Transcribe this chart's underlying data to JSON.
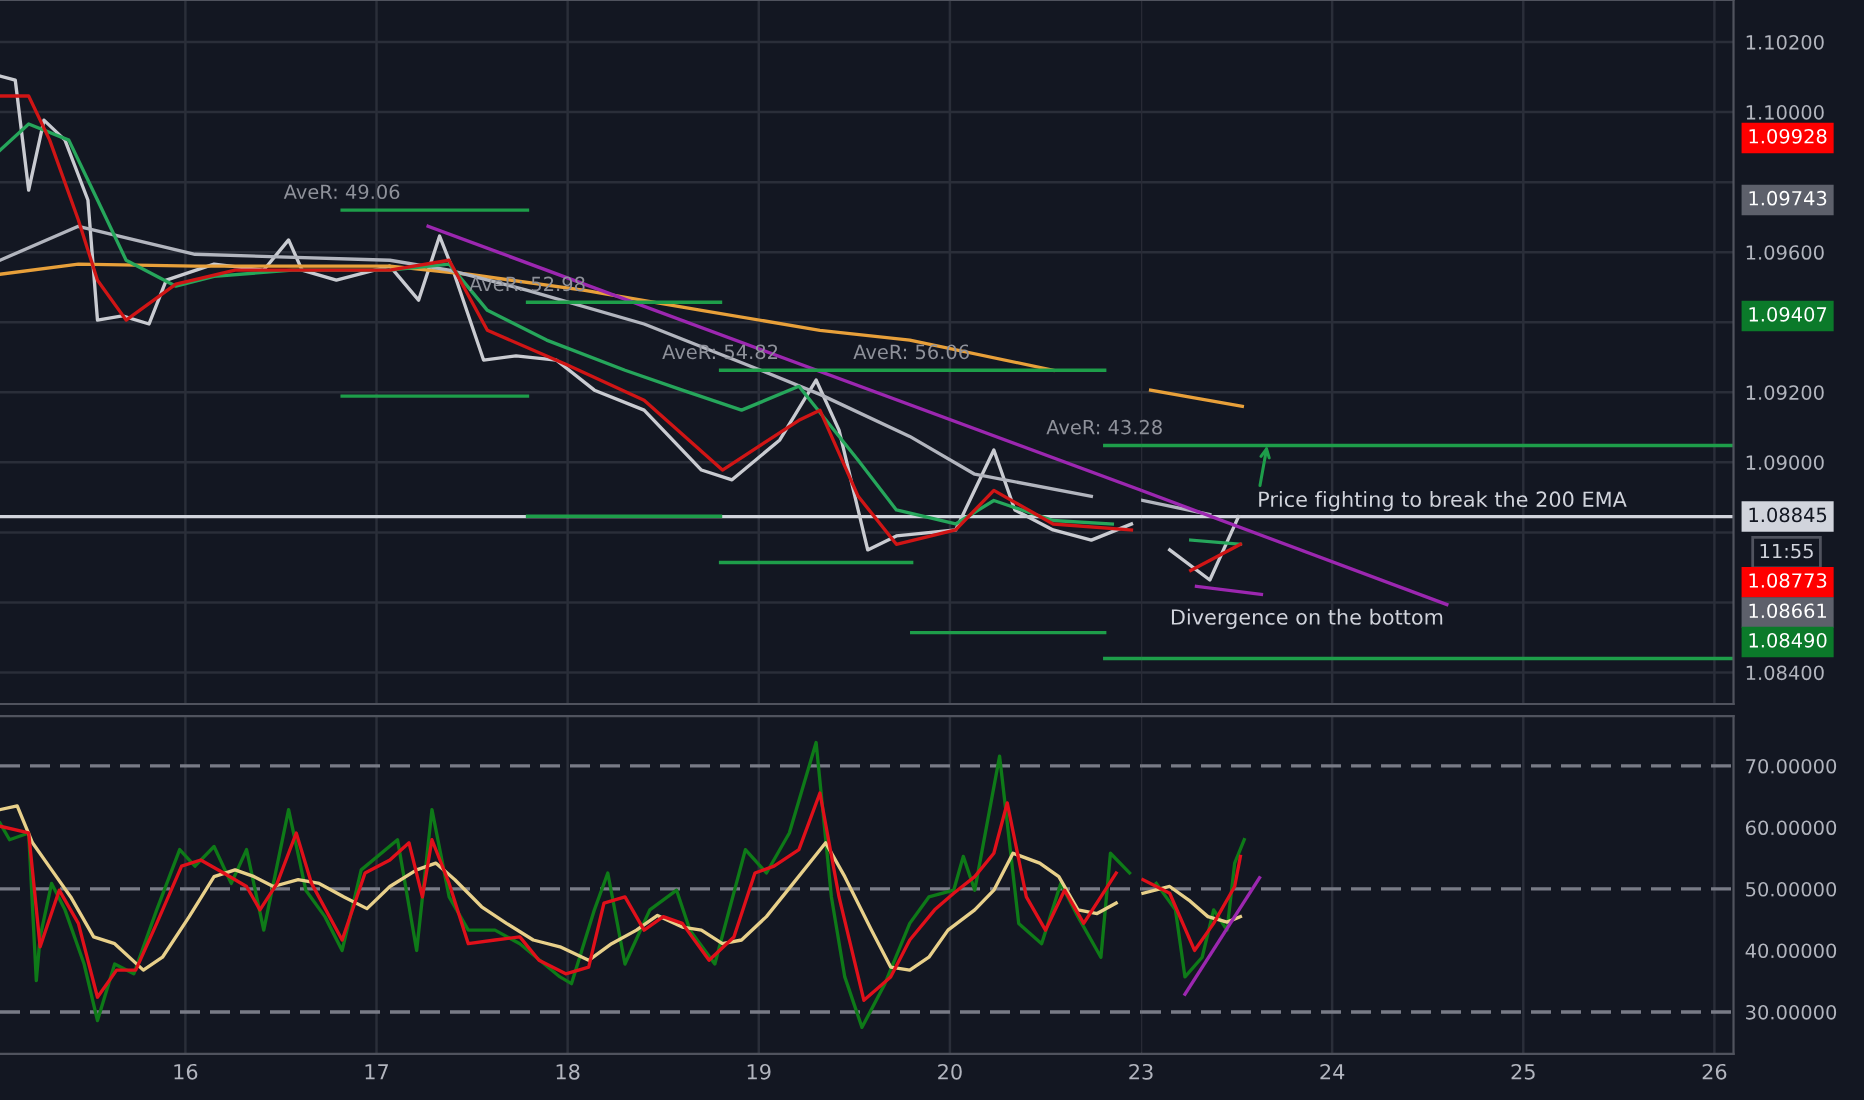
{
  "chart_data": [
    {
      "type": "line",
      "xlim": [
        15.03,
        21
      ],
      "ylim": [
        1.0831,
        1.1032
      ],
      "xticks": [
        {
          "value": 16,
          "label": null
        },
        {
          "value": 17,
          "label": null
        },
        {
          "value": 18,
          "label": null
        },
        {
          "value": 19,
          "label": null
        },
        {
          "value": 20,
          "label": null
        }
      ],
      "yticks": [
        1.084,
        1.086,
        1.088,
        1.09,
        1.092,
        1.094,
        1.096,
        1.098,
        1.1,
        1.102
      ],
      "tick_labels": false,
      "grid": true,
      "series": [
        {
          "color": "#c9cbd1",
          "x": [
            15.03,
            15.11,
            15.18,
            15.26,
            15.37,
            15.49,
            15.54,
            15.67,
            15.81,
            15.9,
            16.15,
            16.41,
            16.54,
            16.61,
            16.79,
            17.07,
            17.22,
            17.33,
            17.4,
            17.56,
            17.73,
            17.94,
            18.14,
            18.4,
            18.7,
            18.86,
            19.11,
            19.3,
            19.42,
            19.57,
            19.72,
            20.03,
            20.23,
            20.34,
            20.54,
            20.74,
            20.95
          ],
          "values": [
            1.10103,
            1.10091,
            1.09777,
            1.09977,
            1.0992,
            1.09749,
            1.09406,
            1.09418,
            1.09395,
            1.0952,
            1.09566,
            1.09549,
            1.09635,
            1.09549,
            1.0952,
            1.0956,
            1.09463,
            1.09646,
            1.09549,
            1.09292,
            1.09304,
            1.09292,
            1.09206,
            1.09149,
            1.08978,
            1.0895,
            1.09064,
            1.09235,
            1.09092,
            1.0875,
            1.0879,
            1.08807,
            1.09035,
            1.08864,
            1.08807,
            1.08778,
            1.08824
          ]
        },
        {
          "color": "#e8a03a",
          "x": [
            15.03,
            15.44,
            16.05,
            17.07,
            17.48,
            18.09,
            18.7,
            19.32,
            19.79,
            20.54
          ],
          "values": [
            1.09537,
            1.09566,
            1.0956,
            1.0956,
            1.09537,
            1.09491,
            1.09434,
            1.09377,
            1.09349,
            1.09263
          ]
        },
        {
          "color": "#b2b5be",
          "x": [
            15.03,
            15.44,
            16.05,
            17.07,
            17.38,
            17.79,
            18.4,
            19.01,
            19.32,
            19.79,
            20.13,
            20.74
          ],
          "values": [
            1.09577,
            1.09674,
            1.09594,
            1.09577,
            1.09549,
            1.09491,
            1.09395,
            1.09263,
            1.09194,
            1.09074,
            1.08966,
            1.08903
          ]
        },
        {
          "color": "#26a65b",
          "x": [
            15.03,
            15.18,
            15.39,
            15.54,
            15.69,
            15.95,
            16.15,
            16.56,
            17.07,
            17.38,
            17.58,
            17.89,
            18.3,
            18.6,
            18.91,
            19.21,
            19.52,
            19.72,
            20.03,
            20.23,
            20.54,
            20.85
          ],
          "values": [
            1.09891,
            1.09966,
            1.0992,
            1.09749,
            1.09577,
            1.09503,
            1.09531,
            1.09549,
            1.09549,
            1.09566,
            1.09434,
            1.09349,
            1.09263,
            1.09206,
            1.09149,
            1.09217,
            1.09006,
            1.08864,
            1.08824,
            1.08891,
            1.08834,
            1.08824
          ]
        },
        {
          "color": "#d01515",
          "x": [
            15.03,
            15.18,
            15.29,
            15.44,
            15.54,
            15.69,
            15.95,
            16.26,
            17.07,
            17.38,
            17.58,
            17.99,
            18.4,
            18.81,
            19.21,
            19.32,
            19.52,
            19.72,
            20.03,
            20.23,
            20.54,
            20.95
          ],
          "values": [
            1.10046,
            1.10046,
            1.0992,
            1.09692,
            1.0952,
            1.09406,
            1.09509,
            1.09549,
            1.09549,
            1.09577,
            1.09377,
            1.0928,
            1.09177,
            1.08978,
            1.0912,
            1.09149,
            1.08903,
            1.08766,
            1.08807,
            1.0892,
            1.08824,
            1.08807
          ]
        },
        {
          "color": "#9c27b0",
          "x": [
            17.27,
            21
          ],
          "values": [
            1.09674,
            1.0892
          ]
        },
        {
          "color": "#1e9e4a",
          "x": [
            16.82,
            17.79
          ],
          "values": [
            1.0972,
            1.0972
          ]
        },
        {
          "color": "#1e9e4a",
          "x": [
            16.82,
            17.79
          ],
          "values": [
            1.09189,
            1.09189
          ]
        },
        {
          "color": "#1e9e4a",
          "x": [
            17.79,
            18.8
          ],
          "values": [
            1.09457,
            1.09457
          ]
        },
        {
          "color": "#1e9e4a",
          "x": [
            17.79,
            18.8
          ],
          "values": [
            1.08846,
            1.08846
          ]
        },
        {
          "color": "#1e9e4a",
          "x": [
            18.8,
            20.81
          ],
          "values": [
            1.09263,
            1.09263
          ]
        },
        {
          "color": "#1e9e4a",
          "x": [
            18.8,
            19.8
          ],
          "values": [
            1.08714,
            1.08714
          ]
        },
        {
          "color": "#1e9e4a",
          "x": [
            19.8,
            20.81
          ],
          "values": [
            1.08514,
            1.08514
          ]
        },
        {
          "color": "#1e9e4a",
          "x": [
            20.81,
            21
          ],
          "values": [
            1.09048,
            1.09048
          ]
        },
        {
          "color": "#1e9e4a",
          "x": [
            20.81,
            21
          ],
          "values": [
            1.0844,
            1.0844
          ]
        }
      ],
      "ref_lines": [
        {
          "axis": "y",
          "value": 1.08845,
          "color": "#d1d4dc",
          "line_style": "solid"
        }
      ],
      "annotations": [
        {
          "text": "AveR: 49.06",
          "x": 16.82,
          "y": 1.0972
        },
        {
          "text": "AveR: 52.98",
          "x": 17.79,
          "y": 1.09457
        },
        {
          "text": "AveR: 54.82",
          "x": 18.8,
          "y": 1.09263
        },
        {
          "text": "AveR: 56.06",
          "x": 19.8,
          "y": 1.09263
        },
        {
          "text": "AveR: 43.28",
          "x": 20.81,
          "y": 1.09048
        }
      ]
    },
    {
      "type": "line",
      "xlim": [
        23,
        26.1
      ],
      "ylim": [
        1.0831,
        1.1032
      ],
      "xticks": [
        {
          "value": 23,
          "label": null
        },
        {
          "value": 24,
          "label": null
        },
        {
          "value": 25,
          "label": null
        },
        {
          "value": 26,
          "label": null
        }
      ],
      "yticks": [
        {
          "value": 1.084,
          "label": "1.08400"
        },
        {
          "value": 1.086,
          "label": null
        },
        {
          "value": 1.088,
          "label": null
        },
        {
          "value": 1.09,
          "label": "1.09000"
        },
        {
          "value": 1.092,
          "label": "1.09200"
        },
        {
          "value": 1.094,
          "label": null
        },
        {
          "value": 1.096,
          "label": "1.09600"
        },
        {
          "value": 1.098,
          "label": null
        },
        {
          "value": 1.1,
          "label": "1.10000"
        },
        {
          "value": 1.102,
          "label": "1.10200"
        }
      ],
      "tick_labels": "y",
      "grid": true,
      "series": [
        {
          "color": "#c9cbd1",
          "x": [
            23.15,
            23.36,
            23.51
          ],
          "values": [
            1.0875,
            1.08664,
            1.08845
          ]
        },
        {
          "color": "#e8a03a",
          "x": [
            23.05,
            23.53
          ],
          "values": [
            1.09206,
            1.0916
          ]
        },
        {
          "color": "#b2b5be",
          "x": [
            23,
            23.36
          ],
          "values": [
            1.08892,
            1.08851
          ]
        },
        {
          "color": "#26a65b",
          "x": [
            23.26,
            23.52
          ],
          "values": [
            1.08778,
            1.08766
          ]
        },
        {
          "color": "#d01515",
          "x": [
            23.26,
            23.52
          ],
          "values": [
            1.08691,
            1.08766
          ]
        },
        {
          "color": "#9c27b0",
          "x": [
            23,
            24.6
          ],
          "values": [
            1.0892,
            1.08594
          ]
        },
        {
          "color": "#9c27b0",
          "x": [
            23.29,
            23.63
          ],
          "values": [
            1.08646,
            1.08623
          ]
        },
        {
          "color": "#1e9e4a",
          "x": [
            23,
            26.1
          ],
          "values": [
            1.09048,
            1.09048
          ]
        },
        {
          "color": "#1e9e4a",
          "x": [
            23,
            26.1
          ],
          "values": [
            1.0844,
            1.0844
          ]
        }
      ],
      "ref_lines": [
        {
          "axis": "y",
          "value": 1.08845,
          "label": "1.08845\n11:55",
          "color": "#d1d4dc",
          "line_style": "solid"
        }
      ],
      "annotations": [
        {
          "text": "Price fighting to break the 200 EMA",
          "x": 23.66,
          "y": 1.09048
        },
        "Divergence on the bottom",
        "1.09928",
        "1.09743",
        "1.09407",
        "1.08773",
        "1.08661",
        "1.08490"
      ]
    },
    {
      "type": "line",
      "xlim": [
        15.03,
        21
      ],
      "ylim": [
        23.2,
        78.1
      ],
      "xticks": [
        16,
        17,
        18,
        19,
        20
      ],
      "yticks": [
        30,
        40,
        50,
        60,
        70
      ],
      "tick_labels": "x",
      "grid": "x",
      "series": [
        {
          "color": "#0e7a18",
          "x": [
            15.03,
            15.08,
            15.18,
            15.22,
            15.24,
            15.3,
            15.37,
            15.47,
            15.54,
            15.63,
            15.73,
            15.85,
            15.97,
            16.05,
            16.15,
            16.24,
            16.32,
            16.41,
            16.54,
            16.63,
            16.73,
            16.82,
            16.92,
            17.11,
            17.21,
            17.29,
            17.38,
            17.48,
            17.62,
            17.75,
            17.96,
            18.02,
            18.14,
            18.21,
            18.3,
            18.43,
            18.57,
            18.64,
            18.77,
            18.93,
            19.04,
            19.16,
            19.3,
            19.38,
            19.45,
            19.54,
            19.66,
            19.79,
            19.89,
            20.02,
            20.07,
            20.13,
            20.26,
            20.36,
            20.48,
            20.58,
            20.67,
            20.79,
            20.84,
            20.94
          ],
          "values": [
            60.7,
            58.0,
            59.1,
            35.1,
            42.2,
            50.9,
            46.6,
            37.8,
            28.6,
            37.8,
            36.2,
            46.6,
            56.4,
            53.7,
            56.9,
            50.9,
            56.4,
            43.3,
            62.9,
            49.8,
            45.5,
            40.0,
            53.1,
            58.0,
            40.0,
            62.9,
            48.7,
            43.3,
            43.3,
            41.1,
            35.7,
            34.6,
            46.6,
            52.6,
            37.8,
            46.6,
            49.8,
            43.3,
            37.8,
            56.4,
            52.6,
            59.1,
            73.8,
            48.7,
            35.7,
            27.5,
            34.6,
            44.4,
            48.7,
            49.8,
            55.3,
            49.8,
            71.6,
            44.4,
            41.1,
            50.9,
            45.5,
            38.9,
            55.8,
            52.6
          ]
        },
        {
          "color": "#e8d08a",
          "x": [
            15.03,
            15.12,
            15.2,
            15.3,
            15.4,
            15.52,
            15.63,
            15.78,
            15.88,
            16.02,
            16.15,
            16.26,
            16.36,
            16.46,
            16.59,
            16.7,
            16.83,
            16.95,
            17.07,
            17.21,
            17.31,
            17.41,
            17.55,
            17.68,
            17.82,
            17.96,
            18.11,
            18.23,
            18.36,
            18.47,
            18.6,
            18.7,
            18.81,
            18.91,
            19.04,
            19.18,
            19.35,
            19.45,
            19.59,
            19.69,
            19.79,
            19.89,
            19.99,
            20.13,
            20.23,
            20.33,
            20.47,
            20.57,
            20.67,
            20.77,
            20.87
          ],
          "values": [
            62.9,
            63.5,
            57.5,
            53.1,
            48.7,
            42.2,
            41.1,
            36.8,
            38.9,
            45.5,
            52.0,
            53.1,
            52.0,
            50.4,
            51.5,
            50.9,
            48.7,
            46.8,
            50.4,
            53.1,
            54.2,
            51.5,
            47.1,
            44.4,
            41.7,
            40.6,
            38.4,
            41.1,
            43.3,
            45.7,
            43.8,
            43.3,
            41.1,
            41.7,
            45.5,
            50.9,
            57.5,
            52.0,
            43.3,
            37.3,
            36.8,
            38.9,
            43.3,
            46.6,
            49.8,
            55.8,
            54.2,
            52.0,
            46.6,
            46.0,
            47.7
          ]
        },
        {
          "color": "#e0101a",
          "x": [
            15.03,
            15.18,
            15.24,
            15.34,
            15.44,
            15.54,
            15.64,
            15.74,
            15.85,
            15.98,
            16.08,
            16.2,
            16.32,
            16.39,
            16.48,
            16.58,
            16.66,
            16.82,
            16.94,
            17.07,
            17.17,
            17.24,
            17.29,
            17.38,
            17.48,
            17.62,
            17.75,
            17.85,
            17.99,
            18.11,
            18.19,
            18.3,
            18.4,
            18.5,
            18.6,
            18.74,
            18.87,
            18.98,
            19.08,
            19.21,
            19.32,
            19.42,
            19.55,
            19.69,
            19.79,
            19.92,
            20.02,
            20.13,
            20.23,
            20.3,
            20.4,
            20.5,
            20.6,
            20.7,
            20.87
          ],
          "values": [
            60.2,
            59.1,
            40.6,
            49.8,
            44.4,
            32.4,
            36.8,
            36.8,
            44.4,
            53.7,
            54.7,
            52.6,
            50.4,
            46.6,
            50.9,
            59.1,
            50.9,
            41.7,
            52.6,
            54.7,
            57.5,
            48.7,
            58.0,
            50.9,
            41.1,
            41.7,
            42.2,
            38.4,
            36.2,
            37.3,
            47.7,
            48.7,
            43.3,
            45.5,
            44.4,
            38.4,
            42.2,
            52.6,
            53.7,
            56.4,
            65.6,
            48.7,
            31.9,
            35.7,
            41.7,
            46.6,
            49.3,
            52.0,
            55.8,
            64.0,
            48.7,
            43.3,
            49.8,
            44.4,
            52.6
          ]
        }
      ],
      "ref_lines": [
        {
          "axis": "y",
          "value": 70,
          "color": "#787b86",
          "line_style": "dashed"
        },
        {
          "axis": "y",
          "value": 50,
          "color": "#787b86",
          "line_style": "dashed"
        },
        {
          "axis": "y",
          "value": 30,
          "color": "#787b86",
          "line_style": "dashed"
        }
      ]
    },
    {
      "type": "line",
      "xlim": [
        23,
        26.1
      ],
      "ylim": [
        23.2,
        78.1
      ],
      "xticks": [
        23,
        24,
        25,
        26
      ],
      "yticks": [
        {
          "value": 30,
          "label": "30.00000"
        },
        {
          "value": 40,
          "label": "40.00000"
        },
        {
          "value": 50,
          "label": "50.00000"
        },
        {
          "value": 60,
          "label": "60.00000"
        },
        {
          "value": 70,
          "label": "70.00000"
        }
      ],
      "grid": "x",
      "series": [
        {
          "color": "#0e7a18",
          "x": [
            23.08,
            23.18,
            23.23,
            23.32,
            23.38,
            23.45,
            23.49,
            23.54
          ],
          "values": [
            50.9,
            46.6,
            35.7,
            38.9,
            46.6,
            43.3,
            54.2,
            58.0
          ]
        },
        {
          "color": "#e8d08a",
          "x": [
            23.01,
            23.15,
            23.25,
            23.35,
            23.45,
            23.52
          ],
          "values": [
            49.3,
            50.4,
            48.2,
            45.5,
            44.6,
            45.5
          ]
        },
        {
          "color": "#e0101a",
          "x": [
            23.01,
            23.15,
            23.28,
            23.38,
            23.49,
            23.52
          ],
          "values": [
            51.5,
            49.3,
            40.0,
            44.4,
            50.4,
            55.3
          ]
        },
        {
          "color": "#9c27b0",
          "x": [
            23.23,
            23.62
          ],
          "values": [
            32.9,
            51.8
          ]
        }
      ],
      "ref_lines": [
        {
          "axis": "y",
          "value": 70,
          "color": "#787b86",
          "line_style": "dashed"
        },
        {
          "axis": "y",
          "value": 50,
          "color": "#787b86",
          "line_style": "dashed"
        },
        {
          "axis": "y",
          "value": 30,
          "color": "#787b86",
          "line_style": "dashed"
        }
      ]
    }
  ]
}
